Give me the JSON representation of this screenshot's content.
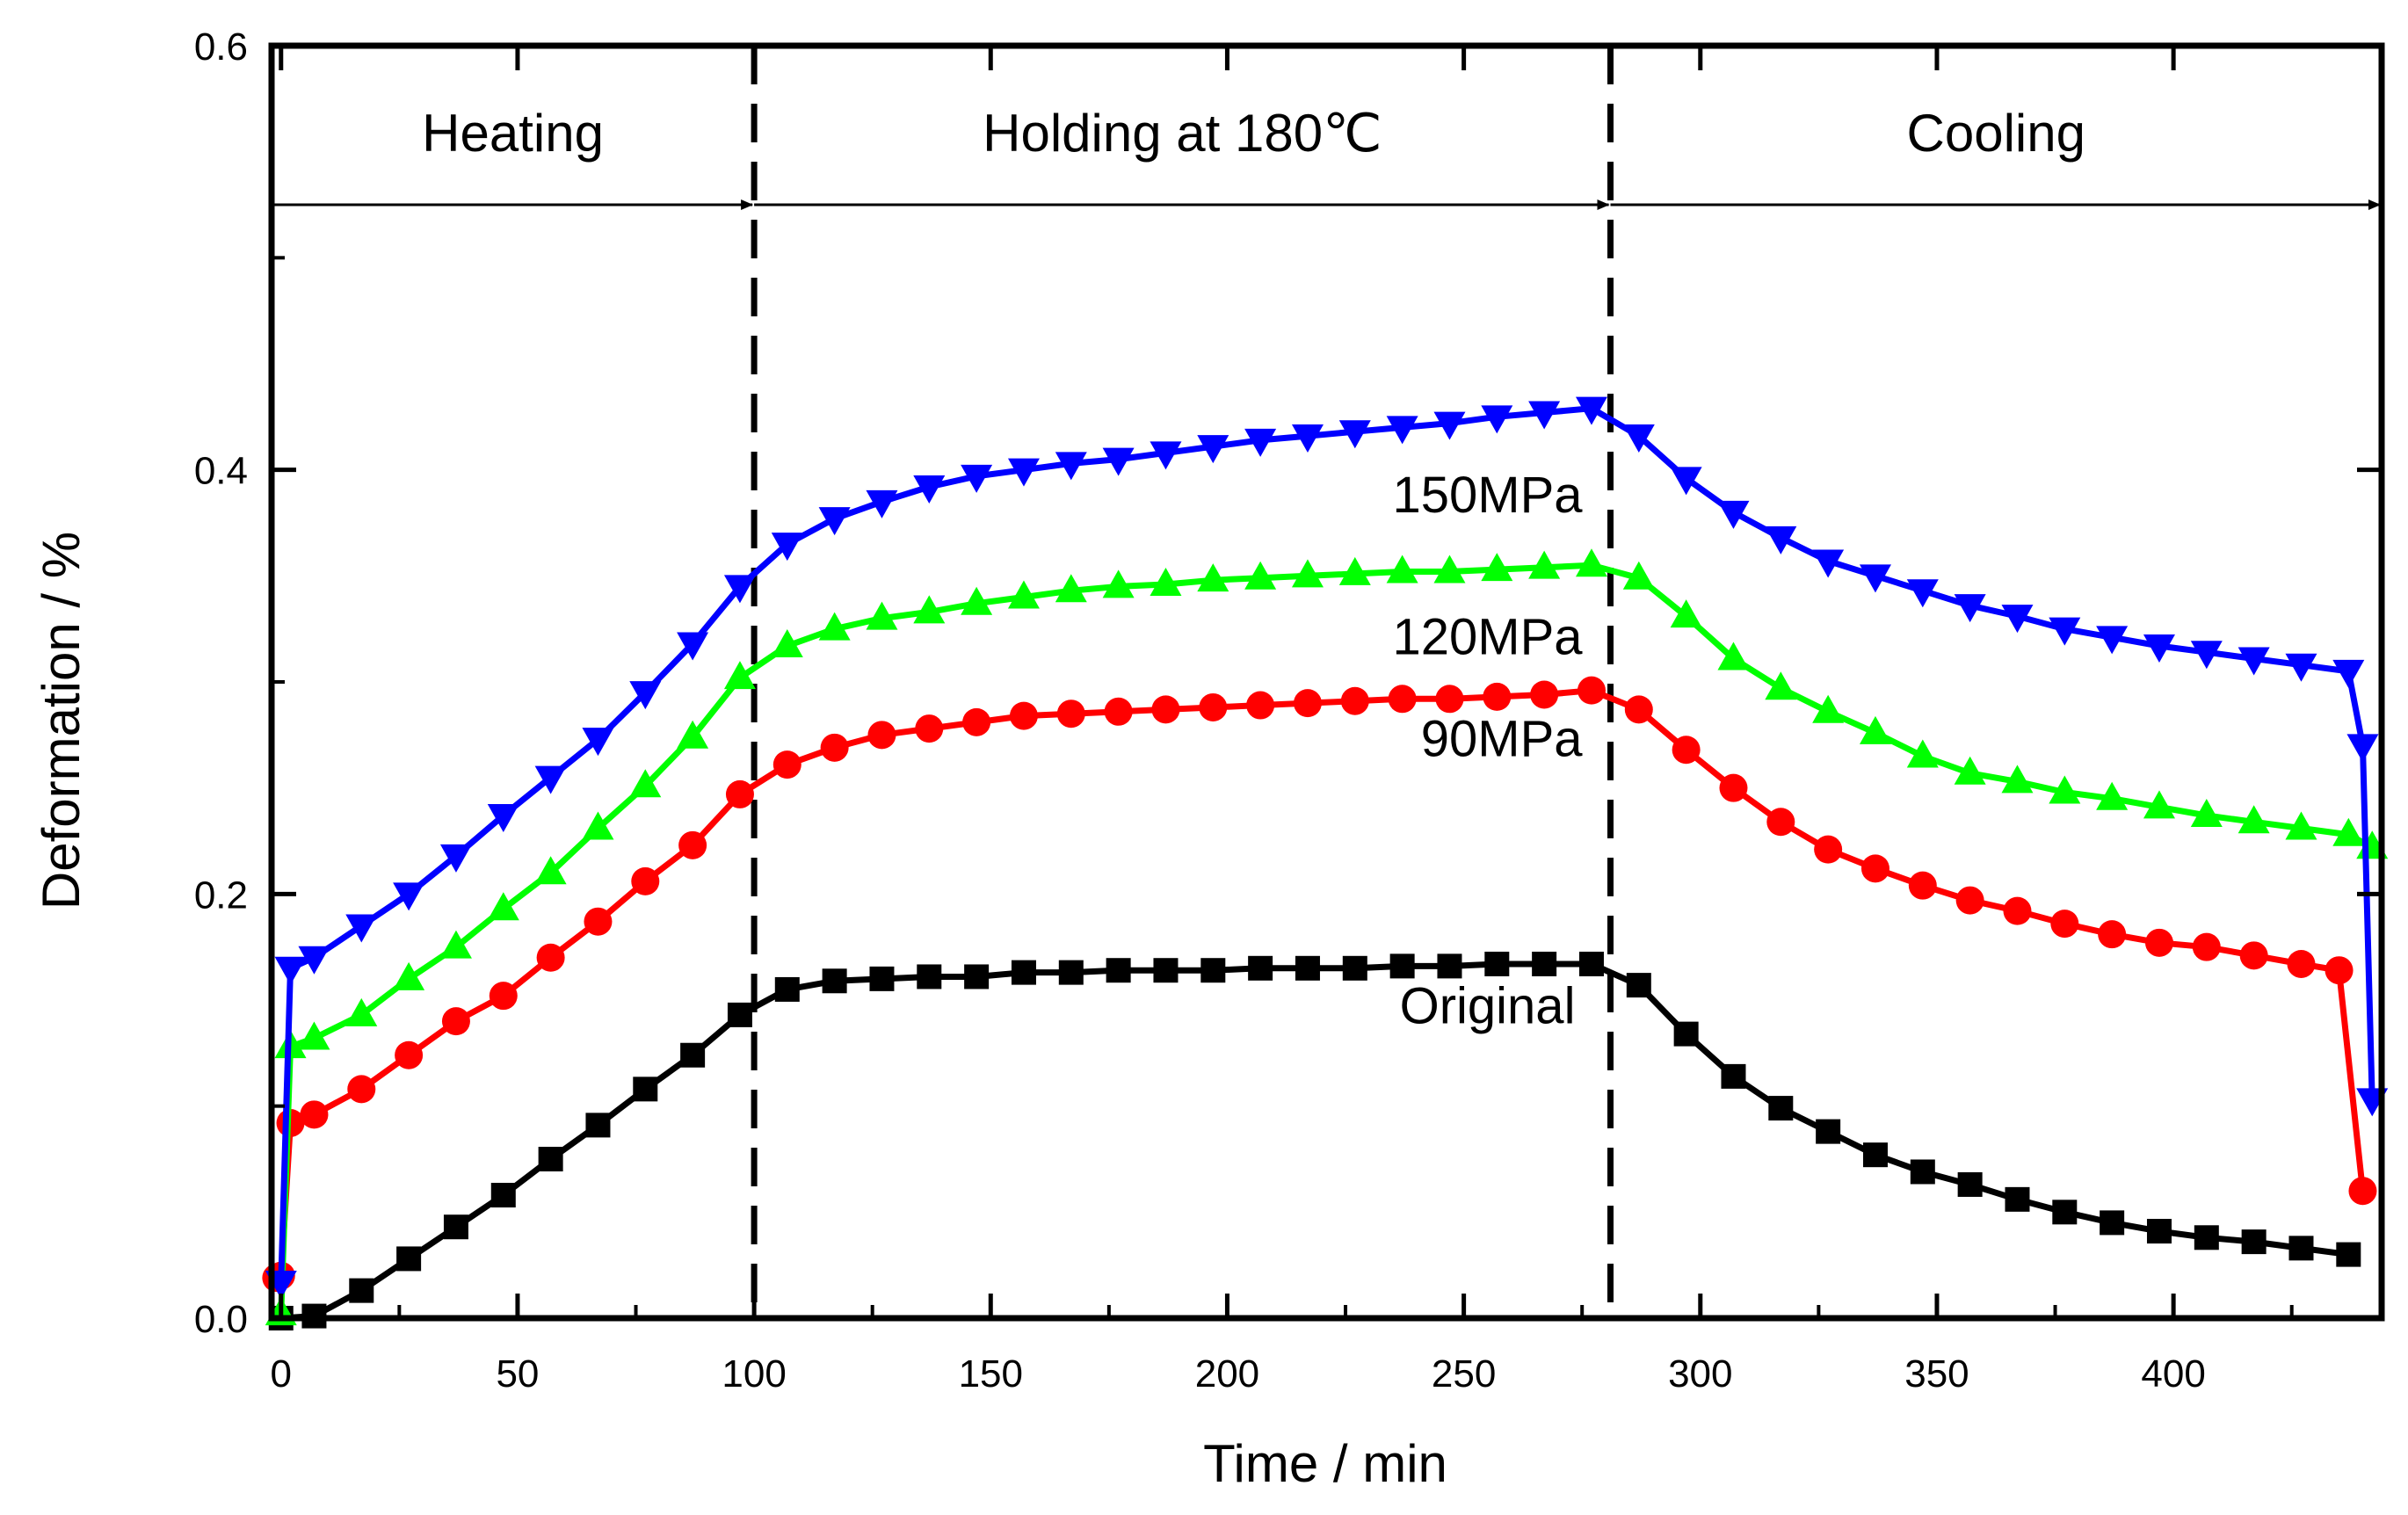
{
  "chart_data": {
    "type": "line",
    "title": "",
    "xlabel": "Time / min",
    "ylabel": "Deformation / %",
    "xlim": [
      -2,
      444
    ],
    "ylim": [
      0.0,
      0.6
    ],
    "xticks": [
      0,
      50,
      100,
      150,
      200,
      250,
      300,
      350,
      400
    ],
    "xtick_labels": [
      "0",
      "50",
      "100",
      "150",
      "200",
      "250",
      "300",
      "350",
      "400"
    ],
    "yticks": [
      0.0,
      0.2,
      0.4,
      0.6
    ],
    "ytick_labels": [
      "0.0",
      "0.2",
      "0.4",
      "0.6"
    ],
    "grid": false,
    "phases": [
      {
        "label": "Heating",
        "start": -2,
        "end": 100
      },
      {
        "label": "Holding at 180℃",
        "start": 100,
        "end": 281
      },
      {
        "label": "Cooling",
        "start": 281,
        "end": 444
      }
    ],
    "phase_arrow_y": 0.525,
    "phase_boundaries": [
      100,
      281
    ],
    "series": [
      {
        "name": "Original",
        "color": "#000000",
        "marker": "square",
        "label_at": [
          255,
          0.139
        ],
        "x": [
          0,
          7,
          17,
          27,
          37,
          47,
          57,
          67,
          77,
          87,
          97,
          107,
          117,
          127,
          137,
          147,
          157,
          167,
          177,
          187,
          197,
          207,
          217,
          227,
          237,
          247,
          257,
          267,
          277,
          287,
          297,
          307,
          317,
          327,
          337,
          347,
          357,
          367,
          377,
          387,
          397,
          407,
          417,
          427,
          437
        ],
        "y": [
          0.0,
          0.001,
          0.013,
          0.028,
          0.043,
          0.058,
          0.075,
          0.091,
          0.108,
          0.124,
          0.143,
          0.155,
          0.159,
          0.16,
          0.161,
          0.161,
          0.163,
          0.163,
          0.164,
          0.164,
          0.164,
          0.165,
          0.165,
          0.165,
          0.166,
          0.166,
          0.167,
          0.167,
          0.167,
          0.157,
          0.134,
          0.114,
          0.099,
          0.088,
          0.077,
          0.069,
          0.063,
          0.056,
          0.05,
          0.045,
          0.041,
          0.038,
          0.036,
          0.033,
          0.03
        ]
      },
      {
        "name": "90MPa",
        "color": "#ff0000",
        "marker": "circle",
        "label_at": [
          258,
          0.265
        ],
        "x": [
          -1,
          0,
          2,
          7,
          17,
          27,
          37,
          47,
          57,
          67,
          77,
          87,
          97,
          107,
          117,
          127,
          137,
          147,
          157,
          167,
          177,
          187,
          197,
          207,
          217,
          227,
          237,
          247,
          257,
          267,
          277,
          287,
          297,
          307,
          317,
          327,
          337,
          347,
          357,
          367,
          377,
          387,
          397,
          407,
          417,
          427,
          435,
          440
        ],
        "y": [
          0.019,
          0.02,
          0.092,
          0.096,
          0.108,
          0.124,
          0.14,
          0.152,
          0.17,
          0.187,
          0.206,
          0.223,
          0.247,
          0.261,
          0.269,
          0.275,
          0.278,
          0.281,
          0.284,
          0.285,
          0.286,
          0.287,
          0.288,
          0.289,
          0.29,
          0.291,
          0.292,
          0.292,
          0.293,
          0.294,
          0.296,
          0.287,
          0.268,
          0.25,
          0.234,
          0.221,
          0.212,
          0.204,
          0.197,
          0.192,
          0.186,
          0.181,
          0.177,
          0.175,
          0.171,
          0.167,
          0.164,
          0.06
        ]
      },
      {
        "name": "120MPa",
        "color": "#00ff00",
        "marker": "triangle-up",
        "label_at": [
          255,
          0.313
        ],
        "x": [
          0,
          2,
          7,
          17,
          27,
          37,
          47,
          57,
          67,
          77,
          87,
          97,
          107,
          117,
          127,
          137,
          147,
          157,
          167,
          177,
          187,
          197,
          207,
          217,
          227,
          237,
          247,
          257,
          267,
          277,
          287,
          297,
          307,
          317,
          327,
          337,
          347,
          357,
          367,
          377,
          387,
          397,
          407,
          417,
          427,
          437,
          442
        ],
        "y": [
          0.002,
          0.128,
          0.132,
          0.143,
          0.16,
          0.175,
          0.193,
          0.21,
          0.231,
          0.251,
          0.274,
          0.302,
          0.317,
          0.325,
          0.33,
          0.333,
          0.337,
          0.34,
          0.343,
          0.345,
          0.346,
          0.348,
          0.349,
          0.35,
          0.351,
          0.352,
          0.352,
          0.353,
          0.354,
          0.355,
          0.349,
          0.331,
          0.311,
          0.297,
          0.286,
          0.276,
          0.265,
          0.257,
          0.253,
          0.248,
          0.245,
          0.241,
          0.237,
          0.234,
          0.231,
          0.228,
          0.222
        ]
      },
      {
        "name": "150MPa",
        "color": "#0000ff",
        "marker": "triangle-down",
        "label_at": [
          255,
          0.38
        ],
        "x": [
          0,
          2,
          7,
          17,
          27,
          37,
          47,
          57,
          67,
          77,
          87,
          97,
          107,
          117,
          127,
          137,
          147,
          157,
          167,
          177,
          187,
          197,
          207,
          217,
          227,
          237,
          247,
          257,
          267,
          277,
          287,
          297,
          307,
          317,
          327,
          337,
          347,
          357,
          367,
          377,
          387,
          397,
          407,
          417,
          427,
          437,
          440,
          442
        ],
        "y": [
          0.017,
          0.165,
          0.17,
          0.185,
          0.2,
          0.218,
          0.237,
          0.255,
          0.273,
          0.295,
          0.318,
          0.345,
          0.365,
          0.377,
          0.385,
          0.392,
          0.397,
          0.4,
          0.403,
          0.405,
          0.408,
          0.411,
          0.414,
          0.416,
          0.418,
          0.42,
          0.422,
          0.425,
          0.427,
          0.429,
          0.416,
          0.396,
          0.38,
          0.368,
          0.357,
          0.35,
          0.343,
          0.336,
          0.331,
          0.325,
          0.321,
          0.317,
          0.314,
          0.311,
          0.308,
          0.305,
          0.27,
          0.103
        ]
      }
    ]
  }
}
